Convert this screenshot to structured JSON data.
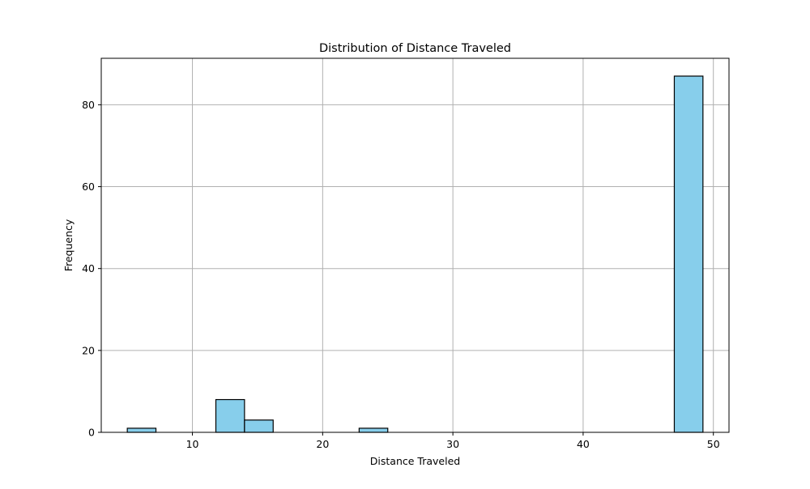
{
  "chart_data": {
    "type": "bar",
    "title": "Distribution of Distance Traveled",
    "xlabel": "Distance Traveled",
    "ylabel": "Frequency",
    "xlim": [
      3.0,
      51.2
    ],
    "ylim": [
      0,
      91.35
    ],
    "xticks": [
      10,
      20,
      30,
      40,
      50
    ],
    "yticks": [
      0,
      20,
      40,
      60,
      80
    ],
    "grid": true,
    "bar_color": "#87ceeb",
    "edge_color": "#000000",
    "grid_color": "#b0b0b0",
    "bins": [
      {
        "x0": 5.0,
        "x1": 7.2,
        "count": 1
      },
      {
        "x0": 11.8,
        "x1": 14.0,
        "count": 8
      },
      {
        "x0": 14.0,
        "x1": 16.2,
        "count": 3
      },
      {
        "x0": 22.8,
        "x1": 25.0,
        "count": 1
      },
      {
        "x0": 47.0,
        "x1": 49.2,
        "count": 87
      }
    ]
  }
}
